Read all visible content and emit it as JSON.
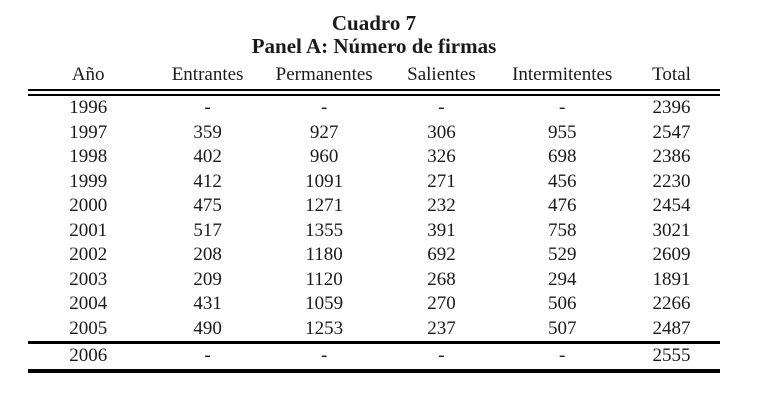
{
  "title": "Cuadro 7",
  "subtitle": "Panel A: Número de firmas",
  "table": {
    "columns": [
      "Año",
      "Entrantes",
      "Permanentes",
      "Salientes",
      "Intermitentes",
      "Total"
    ],
    "rows": [
      [
        "1996",
        "-",
        "-",
        "-",
        "-",
        "2396"
      ],
      [
        "1997",
        "359",
        "927",
        "306",
        "955",
        "2547"
      ],
      [
        "1998",
        "402",
        "960",
        "326",
        "698",
        "2386"
      ],
      [
        "1999",
        "412",
        "1091",
        "271",
        "456",
        "2230"
      ],
      [
        "2000",
        "475",
        "1271",
        "232",
        "476",
        "2454"
      ],
      [
        "2001",
        "517",
        "1355",
        "391",
        "758",
        "3021"
      ],
      [
        "2002",
        "208",
        "1180",
        "692",
        "529",
        "2609"
      ],
      [
        "2003",
        "209",
        "1120",
        "268",
        "294",
        "1891"
      ],
      [
        "2004",
        "431",
        "1059",
        "270",
        "506",
        "2266"
      ],
      [
        "2005",
        "490",
        "1253",
        "237",
        "507",
        "2487"
      ]
    ],
    "footer_row": [
      "2006",
      "-",
      "-",
      "-",
      "-",
      "2555"
    ]
  },
  "colors": {
    "text": "#1a1a1a",
    "rule": "#000000",
    "background": "#ffffff"
  }
}
